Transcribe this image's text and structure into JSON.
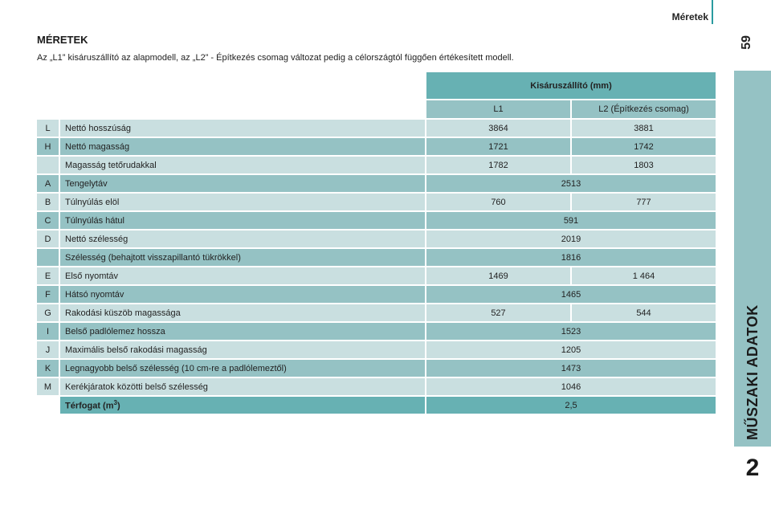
{
  "header": {
    "section_title": "Méretek",
    "page_number": "59"
  },
  "sidebar": {
    "chapter_title": "MŰSZAKI ADATOK",
    "chapter_number": "2"
  },
  "content": {
    "title": "MÉRETEK",
    "intro": "Az „L1” kisáruszállító az alapmodell, az „L2” - Építkezés csomag változat pedig a célországtól függően értékesített modell.",
    "table": {
      "group_header": "Kisáruszállító (mm)",
      "col_l1": "L1",
      "col_l2": "L2 (Építkezés csomag)",
      "rows": [
        {
          "key": "L",
          "label": "Nettó hosszúság",
          "l1": "3864",
          "l2": "3881"
        },
        {
          "key": "H",
          "label": "Nettó magasság",
          "l1": "1721",
          "l2": "1742"
        },
        {
          "key": "",
          "label": "Magasság tetőrudakkal",
          "l1": "1782",
          "l2": "1803"
        },
        {
          "key": "A",
          "label": "Tengelytáv",
          "value": "2513"
        },
        {
          "key": "B",
          "label": "Túlnyúlás elöl",
          "l1": "760",
          "l2": "777"
        },
        {
          "key": "C",
          "label": "Túlnyúlás hátul",
          "value": "591"
        },
        {
          "key": "D",
          "label": "Nettó szélesség",
          "value": "2019"
        },
        {
          "key": "",
          "label": "Szélesség (behajtott visszapillantó tükrökkel)",
          "value": "1816"
        },
        {
          "key": "E",
          "label": "Első nyomtáv",
          "l1": "1469",
          "l2": "1 464"
        },
        {
          "key": "F",
          "label": "Hátsó nyomtáv",
          "value": "1465"
        },
        {
          "key": "G",
          "label": "Rakodási küszöb magassága",
          "l1": "527",
          "l2": "544"
        },
        {
          "key": "I",
          "label": "Belső padlólemez hossza",
          "value": "1523"
        },
        {
          "key": "J",
          "label": "Maximális belső rakodási magasság",
          "value": "1205"
        },
        {
          "key": "K",
          "label": "Legnagyobb belső szélesség (10 cm-re a padlólemeztől)",
          "value": "1473"
        },
        {
          "key": "M",
          "label": "Kerékjáratok közötti belső szélesség",
          "value": "1046"
        }
      ],
      "footer": {
        "label": "Térfogat (m",
        "unit_sup": "3",
        "label_end": ")",
        "value": "2,5"
      }
    }
  }
}
